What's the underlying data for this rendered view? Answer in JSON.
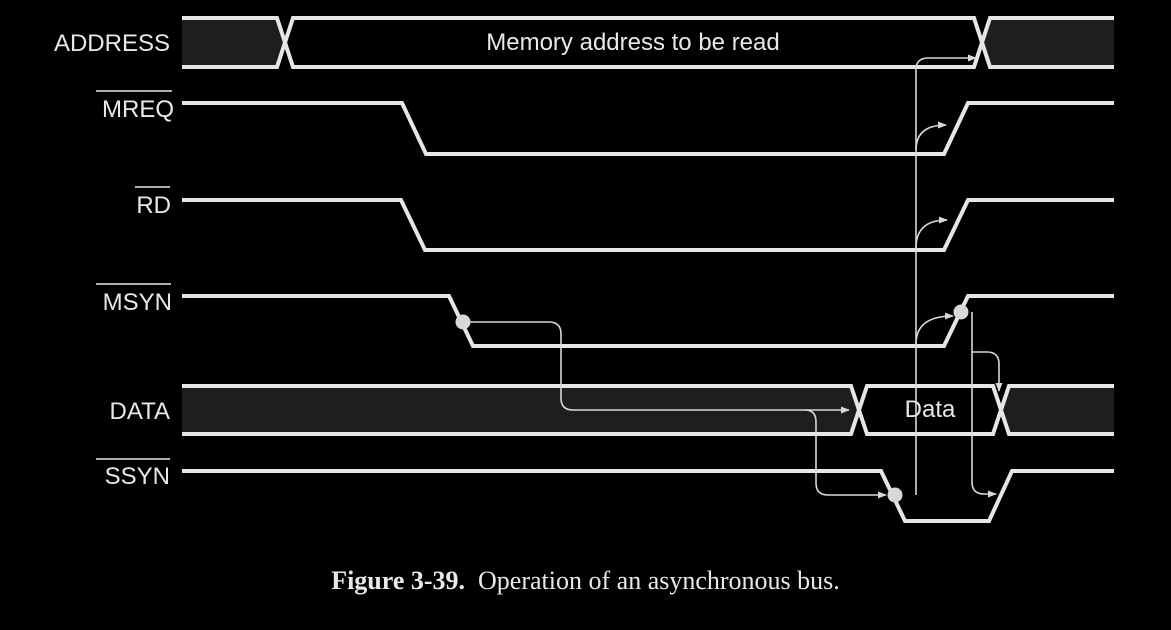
{
  "signals": {
    "address": {
      "label": "ADDRESS",
      "active_low": false,
      "content": "Memory address to be read"
    },
    "mreq": {
      "label": "MREQ",
      "active_low": true
    },
    "rd": {
      "label": "RD",
      "active_low": true
    },
    "msyn": {
      "label": "MSYN",
      "active_low": true
    },
    "data": {
      "label": "DATA",
      "active_low": false,
      "content": "Data"
    },
    "ssyn": {
      "label": "SSYN",
      "active_low": true
    }
  },
  "caption": {
    "number": "Figure 3-39.",
    "text": "Operation of an asynchronous bus."
  },
  "colors": {
    "background": "#000000",
    "waveform": "#e6e6e6",
    "bus_fill": "#1e1e1e",
    "arrow": "#d8d8d8"
  }
}
